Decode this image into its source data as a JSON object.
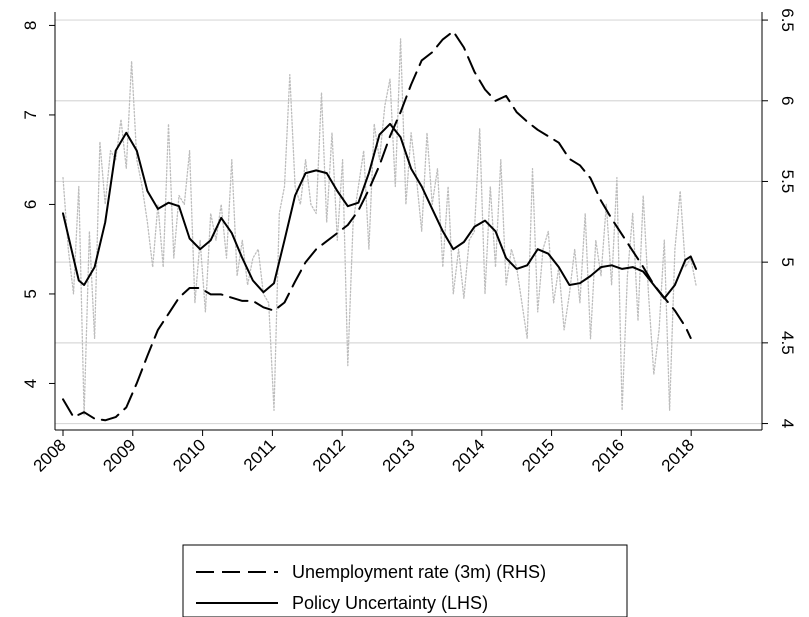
{
  "chart_data": {
    "type": "line",
    "title": "",
    "xlabel": "",
    "ylabel_left": "",
    "ylabel_right": "",
    "x_start": "2008-01",
    "x_end": "2018-12",
    "x_tick_labels": [
      "2008",
      "2009",
      "2010",
      "2011",
      "2012",
      "2013",
      "2014",
      "2015",
      "2016",
      "2018"
    ],
    "y_left": {
      "range": [
        3.48,
        8.15
      ],
      "ticks": [
        4,
        5,
        6,
        7,
        8
      ],
      "tick_labels": [
        "4",
        "5",
        "6",
        "7",
        "8"
      ]
    },
    "y_right": {
      "range": [
        3.96,
        6.55
      ],
      "ticks": [
        4,
        4.5,
        5,
        5.5,
        6,
        6.5
      ],
      "tick_labels": [
        "4",
        "4.5",
        "5",
        "5.5",
        "6",
        "6.5"
      ]
    },
    "grid": true,
    "legend_position": "bottom",
    "legend": [
      "Unemployment rate (3m) (RHS)",
      "Policy Uncertainty (LHS)"
    ],
    "series": [
      {
        "name": "Unemployment rate (3m) (RHS)",
        "axis": "right",
        "style": "dashed",
        "color": "#000000",
        "points": [
          [
            "2008-01",
            4.15
          ],
          [
            "2008-03",
            4.04
          ],
          [
            "2008-05",
            4.07
          ],
          [
            "2008-07",
            4.03
          ],
          [
            "2008-09",
            4.02
          ],
          [
            "2008-11",
            4.04
          ],
          [
            "2009-01",
            4.1
          ],
          [
            "2009-03",
            4.25
          ],
          [
            "2009-05",
            4.42
          ],
          [
            "2009-07",
            4.58
          ],
          [
            "2009-09",
            4.68
          ],
          [
            "2009-11",
            4.78
          ],
          [
            "2010-01",
            4.84
          ],
          [
            "2010-03",
            4.84
          ],
          [
            "2010-05",
            4.8
          ],
          [
            "2010-07",
            4.8
          ],
          [
            "2010-09",
            4.78
          ],
          [
            "2010-11",
            4.76
          ],
          [
            "2011-01",
            4.76
          ],
          [
            "2011-03",
            4.72
          ],
          [
            "2011-05",
            4.7
          ],
          [
            "2011-07",
            4.75
          ],
          [
            "2011-09",
            4.88
          ],
          [
            "2011-11",
            5.0
          ],
          [
            "2012-01",
            5.08
          ],
          [
            "2012-03",
            5.13
          ],
          [
            "2012-05",
            5.18
          ],
          [
            "2012-07",
            5.23
          ],
          [
            "2012-09",
            5.32
          ],
          [
            "2012-11",
            5.45
          ],
          [
            "2013-01",
            5.6
          ],
          [
            "2013-03",
            5.78
          ],
          [
            "2013-05",
            5.93
          ],
          [
            "2013-07",
            6.1
          ],
          [
            "2013-09",
            6.25
          ],
          [
            "2013-11",
            6.3
          ],
          [
            "2014-01",
            6.38
          ],
          [
            "2014-03",
            6.43
          ],
          [
            "2014-05",
            6.33
          ],
          [
            "2014-07",
            6.18
          ],
          [
            "2014-09",
            6.07
          ],
          [
            "2014-11",
            6.0
          ],
          [
            "2015-01",
            6.03
          ],
          [
            "2015-03",
            5.93
          ],
          [
            "2015-05",
            5.87
          ],
          [
            "2015-07",
            5.82
          ],
          [
            "2015-09",
            5.78
          ],
          [
            "2015-11",
            5.74
          ],
          [
            "2016-01",
            5.64
          ],
          [
            "2016-03",
            5.6
          ],
          [
            "2016-05",
            5.52
          ],
          [
            "2016-07",
            5.38
          ],
          [
            "2016-09",
            5.27
          ],
          [
            "2016-11",
            5.17
          ],
          [
            "2017-01",
            5.07
          ],
          [
            "2017-03",
            4.97
          ],
          [
            "2017-05",
            4.86
          ],
          [
            "2017-07",
            4.78
          ],
          [
            "2017-09",
            4.7
          ],
          [
            "2017-11",
            4.6
          ],
          [
            "2017-12",
            4.53
          ]
        ]
      },
      {
        "name": "Policy Uncertainty (LHS)",
        "axis": "left",
        "style": "solid",
        "color": "#000000",
        "points": [
          [
            "2008-01",
            5.9
          ],
          [
            "2008-03",
            5.4
          ],
          [
            "2008-04",
            5.15
          ],
          [
            "2008-05",
            5.1
          ],
          [
            "2008-07",
            5.3
          ],
          [
            "2008-09",
            5.8
          ],
          [
            "2008-11",
            6.6
          ],
          [
            "2009-01",
            6.8
          ],
          [
            "2009-03",
            6.6
          ],
          [
            "2009-05",
            6.15
          ],
          [
            "2009-07",
            5.95
          ],
          [
            "2009-09",
            6.02
          ],
          [
            "2009-11",
            5.98
          ],
          [
            "2010-01",
            5.62
          ],
          [
            "2010-03",
            5.5
          ],
          [
            "2010-05",
            5.6
          ],
          [
            "2010-07",
            5.85
          ],
          [
            "2010-09",
            5.68
          ],
          [
            "2010-11",
            5.4
          ],
          [
            "2011-01",
            5.15
          ],
          [
            "2011-03",
            5.02
          ],
          [
            "2011-05",
            5.12
          ],
          [
            "2011-07",
            5.6
          ],
          [
            "2011-09",
            6.1
          ],
          [
            "2011-11",
            6.35
          ],
          [
            "2012-01",
            6.38
          ],
          [
            "2012-03",
            6.35
          ],
          [
            "2012-05",
            6.15
          ],
          [
            "2012-07",
            5.98
          ],
          [
            "2012-09",
            6.02
          ],
          [
            "2012-11",
            6.35
          ],
          [
            "2013-01",
            6.78
          ],
          [
            "2013-03",
            6.9
          ],
          [
            "2013-05",
            6.75
          ],
          [
            "2013-07",
            6.4
          ],
          [
            "2013-09",
            6.2
          ],
          [
            "2013-11",
            5.95
          ],
          [
            "2014-01",
            5.7
          ],
          [
            "2014-03",
            5.5
          ],
          [
            "2014-05",
            5.58
          ],
          [
            "2014-07",
            5.75
          ],
          [
            "2014-09",
            5.82
          ],
          [
            "2014-11",
            5.7
          ],
          [
            "2015-01",
            5.4
          ],
          [
            "2015-03",
            5.28
          ],
          [
            "2015-05",
            5.32
          ],
          [
            "2015-07",
            5.5
          ],
          [
            "2015-09",
            5.45
          ],
          [
            "2015-11",
            5.3
          ],
          [
            "2016-01",
            5.1
          ],
          [
            "2016-03",
            5.12
          ],
          [
            "2016-05",
            5.2
          ],
          [
            "2016-07",
            5.3
          ],
          [
            "2016-09",
            5.32
          ],
          [
            "2016-11",
            5.28
          ],
          [
            "2017-01",
            5.3
          ],
          [
            "2017-03",
            5.25
          ],
          [
            "2017-05",
            5.1
          ],
          [
            "2017-07",
            4.95
          ],
          [
            "2017-09",
            5.1
          ],
          [
            "2017-11",
            5.38
          ],
          [
            "2017-12",
            5.42
          ],
          [
            "2018-01",
            5.28
          ]
        ]
      },
      {
        "name": "",
        "axis": "left",
        "style": "dotted",
        "color": "#bdbdbd",
        "points": [
          [
            "2008-01",
            6.3
          ],
          [
            "2008-02",
            5.5
          ],
          [
            "2008-03",
            5.0
          ],
          [
            "2008-04",
            6.2
          ],
          [
            "2008-05",
            3.65
          ],
          [
            "2008-06",
            5.7
          ],
          [
            "2008-07",
            4.5
          ],
          [
            "2008-08",
            6.7
          ],
          [
            "2008-09",
            6.0
          ],
          [
            "2008-10",
            6.6
          ],
          [
            "2008-11",
            6.5
          ],
          [
            "2008-12",
            6.95
          ],
          [
            "2009-01",
            6.4
          ],
          [
            "2009-02",
            7.6
          ],
          [
            "2009-03",
            6.5
          ],
          [
            "2009-04",
            6.2
          ],
          [
            "2009-05",
            5.8
          ],
          [
            "2009-06",
            5.3
          ],
          [
            "2009-07",
            6.0
          ],
          [
            "2009-08",
            5.3
          ],
          [
            "2009-09",
            6.9
          ],
          [
            "2009-10",
            5.4
          ],
          [
            "2009-11",
            6.1
          ],
          [
            "2009-12",
            6.0
          ],
          [
            "2010-01",
            6.6
          ],
          [
            "2010-02",
            4.9
          ],
          [
            "2010-03",
            5.6
          ],
          [
            "2010-04",
            4.8
          ],
          [
            "2010-05",
            5.9
          ],
          [
            "2010-06",
            5.6
          ],
          [
            "2010-07",
            6.0
          ],
          [
            "2010-08",
            5.4
          ],
          [
            "2010-09",
            6.5
          ],
          [
            "2010-10",
            5.2
          ],
          [
            "2010-11",
            5.6
          ],
          [
            "2010-12",
            5.1
          ],
          [
            "2011-01",
            5.4
          ],
          [
            "2011-02",
            5.5
          ],
          [
            "2011-03",
            5.0
          ],
          [
            "2011-04",
            4.9
          ],
          [
            "2011-05",
            3.7
          ],
          [
            "2011-06",
            5.9
          ],
          [
            "2011-07",
            6.2
          ],
          [
            "2011-08",
            7.45
          ],
          [
            "2011-09",
            6.2
          ],
          [
            "2011-10",
            6.0
          ],
          [
            "2011-11",
            6.5
          ],
          [
            "2011-12",
            6.0
          ],
          [
            "2012-01",
            5.9
          ],
          [
            "2012-02",
            7.25
          ],
          [
            "2012-03",
            5.8
          ],
          [
            "2012-04",
            6.8
          ],
          [
            "2012-05",
            5.6
          ],
          [
            "2012-06",
            6.5
          ],
          [
            "2012-07",
            4.2
          ],
          [
            "2012-08",
            5.8
          ],
          [
            "2012-09",
            6.2
          ],
          [
            "2012-10",
            6.6
          ],
          [
            "2012-11",
            5.5
          ],
          [
            "2012-12",
            6.9
          ],
          [
            "2013-01",
            6.5
          ],
          [
            "2013-02",
            7.1
          ],
          [
            "2013-03",
            7.4
          ],
          [
            "2013-04",
            6.2
          ],
          [
            "2013-05",
            7.85
          ],
          [
            "2013-06",
            6.0
          ],
          [
            "2013-07",
            6.8
          ],
          [
            "2013-08",
            6.3
          ],
          [
            "2013-09",
            5.7
          ],
          [
            "2013-10",
            6.8
          ],
          [
            "2013-11",
            6.0
          ],
          [
            "2013-12",
            6.4
          ],
          [
            "2014-01",
            5.3
          ],
          [
            "2014-02",
            6.2
          ],
          [
            "2014-03",
            5.0
          ],
          [
            "2014-04",
            5.5
          ],
          [
            "2014-05",
            4.95
          ],
          [
            "2014-06",
            5.6
          ],
          [
            "2014-07",
            5.7
          ],
          [
            "2014-08",
            6.85
          ],
          [
            "2014-09",
            5.0
          ],
          [
            "2014-10",
            6.2
          ],
          [
            "2014-11",
            5.3
          ],
          [
            "2014-12",
            6.5
          ],
          [
            "2015-01",
            5.1
          ],
          [
            "2015-02",
            5.5
          ],
          [
            "2015-03",
            5.3
          ],
          [
            "2015-04",
            4.9
          ],
          [
            "2015-05",
            4.5
          ],
          [
            "2015-06",
            6.4
          ],
          [
            "2015-07",
            4.8
          ],
          [
            "2015-08",
            5.5
          ],
          [
            "2015-09",
            5.7
          ],
          [
            "2015-10",
            4.9
          ],
          [
            "2015-11",
            5.3
          ],
          [
            "2015-12",
            4.6
          ],
          [
            "2016-01",
            5.0
          ],
          [
            "2016-02",
            5.5
          ],
          [
            "2016-03",
            4.9
          ],
          [
            "2016-04",
            5.9
          ],
          [
            "2016-05",
            4.5
          ],
          [
            "2016-06",
            5.6
          ],
          [
            "2016-07",
            5.2
          ],
          [
            "2016-08",
            6.0
          ],
          [
            "2016-09",
            5.1
          ],
          [
            "2016-10",
            6.3
          ],
          [
            "2016-11",
            3.7
          ],
          [
            "2016-12",
            5.2
          ],
          [
            "2017-01",
            5.9
          ],
          [
            "2017-02",
            4.7
          ],
          [
            "2017-03",
            6.1
          ],
          [
            "2017-04",
            5.0
          ],
          [
            "2017-05",
            4.1
          ],
          [
            "2017-06",
            4.6
          ],
          [
            "2017-07",
            5.6
          ],
          [
            "2017-08",
            3.7
          ],
          [
            "2017-09",
            5.5
          ],
          [
            "2017-10",
            6.15
          ],
          [
            "2017-11",
            5.3
          ],
          [
            "2017-12",
            5.4
          ],
          [
            "2018-01",
            5.1
          ]
        ]
      }
    ]
  }
}
